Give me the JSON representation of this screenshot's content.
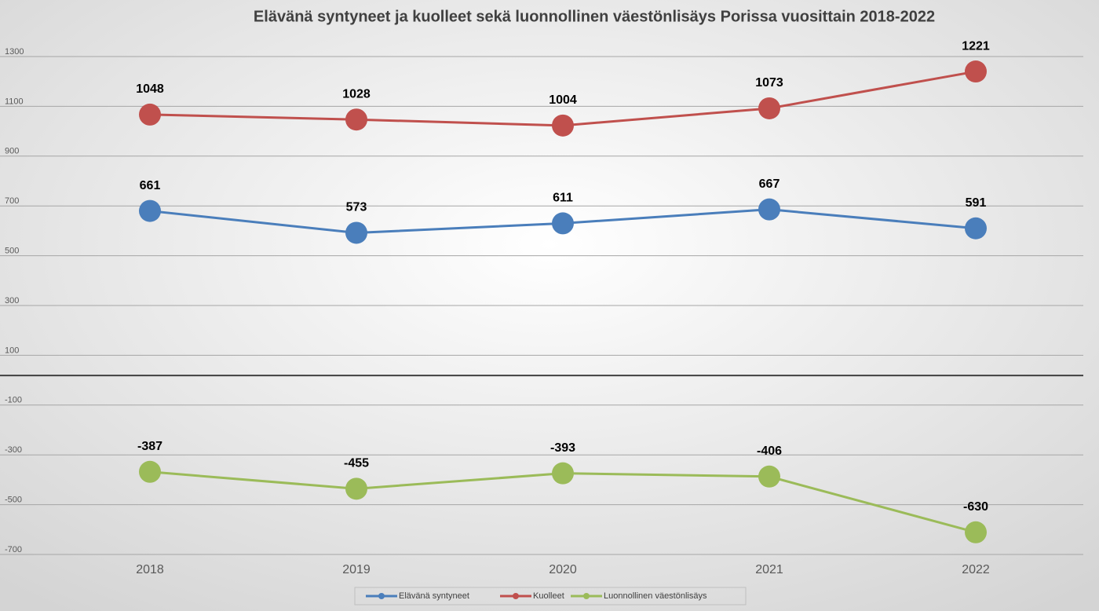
{
  "chart_data": {
    "type": "line",
    "title": "Elävänä syntyneet ja kuolleet sekä luonnollinen väestönlisäys Porissa vuosittain 2018-2022",
    "categories": [
      "2018",
      "2019",
      "2020",
      "2021",
      "2022"
    ],
    "series": [
      {
        "name": "Elävänä syntyneet",
        "color": "#4a7ebb",
        "values": [
          661,
          573,
          611,
          667,
          591
        ]
      },
      {
        "name": "Kuolleet",
        "color": "#c0504d",
        "values": [
          1048,
          1028,
          1004,
          1073,
          1221
        ]
      },
      {
        "name": "Luonnollinen väestönlisäys",
        "color": "#9bbb59",
        "values": [
          -387,
          -455,
          -393,
          -406,
          -630
        ]
      }
    ],
    "ylim": [
      -700,
      1300
    ],
    "yticks": [
      -700,
      -500,
      -300,
      -100,
      100,
      300,
      500,
      700,
      900,
      1100,
      1300
    ],
    "grid": true,
    "legend": "bottom"
  }
}
